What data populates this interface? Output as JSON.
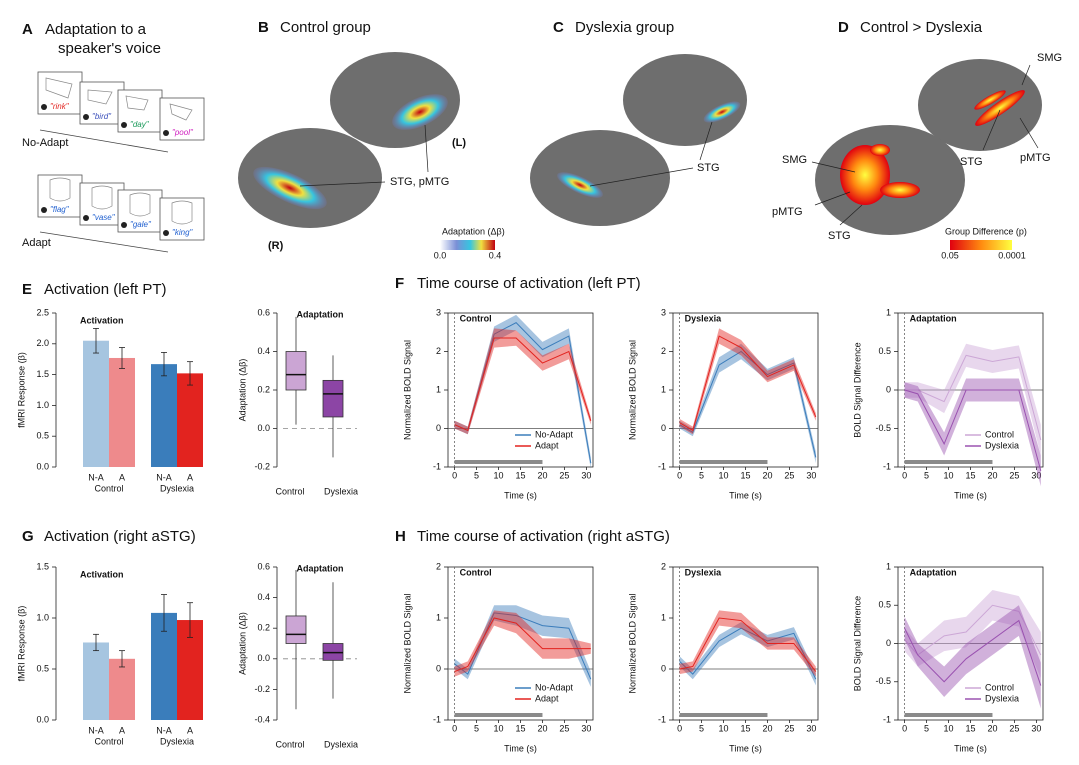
{
  "figure": {
    "panel_a": {
      "letter": "A",
      "title_lines": [
        "Adaptation to a",
        "speaker's voice"
      ],
      "conditions": [
        "No-Adapt",
        "Adapt"
      ],
      "words_no_adapt": [
        "\"rink\"",
        "\"bird\"",
        "\"day\"",
        "\"pool\""
      ],
      "words_adapt": [
        "\"flag\"",
        "\"vase\"",
        "\"gale\"",
        "\"king\""
      ]
    },
    "panel_b": {
      "letter": "B",
      "title": "Control group",
      "hemispheres": [
        "(R)",
        "(L)"
      ],
      "label": "STG, pMTG",
      "colorbar": {
        "title": "Adaptation (Δβ)",
        "min_label": "0.0",
        "max_label": "0.4"
      }
    },
    "panel_c": {
      "letter": "C",
      "title": "Dyslexia group",
      "label": "STG"
    },
    "panel_d": {
      "letter": "D",
      "title": "Control > Dyslexia",
      "labels": [
        "SMG",
        "SMG",
        "pMTG",
        "pMTG",
        "STG",
        "STG"
      ],
      "colorbar": {
        "title": "Group Difference (p)",
        "min_label": "0.05",
        "max_label": "0.0001"
      }
    },
    "panels": [
      {
        "letter": "E",
        "title": "Activation (left PT)"
      },
      {
        "letter": "F",
        "title": "Time course of activation (left PT)"
      },
      {
        "letter": "G",
        "title": "Activation (right aSTG)"
      },
      {
        "letter": "H",
        "title": "Time course of activation (right aSTG)"
      }
    ]
  },
  "chart_data": [
    {
      "type": "bar",
      "title": "Activation",
      "ylabel": "fMRI Response (β)",
      "categories": [
        "N-A",
        "A",
        "N-A",
        "A"
      ],
      "groups": [
        "Control",
        "Dyslexia"
      ],
      "values": [
        2.05,
        1.77,
        1.67,
        1.52
      ],
      "errors": [
        0.2,
        0.17,
        0.19,
        0.19
      ],
      "colors": [
        "#a6c5e0",
        "#ee8a8c",
        "#3a7dbb",
        "#e2231f"
      ],
      "ylim": [
        0,
        2.5
      ],
      "yticks": [
        {
          "value": 0,
          "label": "0.0"
        },
        0.5,
        {
          "value": 1,
          "label": "1.0"
        },
        1.5,
        {
          "value": 2,
          "label": "2.0"
        },
        2.5
      ]
    },
    {
      "type": "box",
      "title": "Adaptation",
      "ylabel": "Adaptation (Δβ)",
      "categories": [
        "Control",
        "Dyslexia"
      ],
      "boxes": [
        {
          "min": 0.02,
          "q1": 0.2,
          "median": 0.28,
          "q3": 0.4,
          "max": 0.58
        },
        {
          "min": -0.15,
          "q1": 0.06,
          "median": 0.18,
          "q3": 0.25,
          "max": 0.38
        }
      ],
      "colors": [
        "#cba5d4",
        "#8c45a5"
      ],
      "ylim": [
        -0.2,
        0.6
      ],
      "yticks": [
        -0.2,
        {
          "value": 0,
          "label": "0.0"
        },
        0.2,
        0.4,
        0.6
      ],
      "reference_line": 0
    },
    {
      "type": "line",
      "title": "Control",
      "xlabel": "Time (s)",
      "ylabel": "Normalized BOLD Signal",
      "x": [
        0,
        3,
        9,
        14,
        20,
        26,
        31
      ],
      "series": [
        {
          "name": "No-Adapt",
          "color": "#3b7dbb",
          "values": [
            0.1,
            -0.05,
            2.45,
            2.75,
            2.05,
            2.4,
            -0.9
          ],
          "errors": [
            0.1,
            0.1,
            0.2,
            0.2,
            0.2,
            0.2,
            0.15
          ]
        },
        {
          "name": "Adapt",
          "color": "#e2231f",
          "values": [
            0.1,
            -0.05,
            2.35,
            2.35,
            1.7,
            2.0,
            0.2
          ],
          "errors": [
            0.1,
            0.1,
            0.25,
            0.2,
            0.2,
            0.2,
            0.1
          ]
        }
      ],
      "xlim": [
        -1.5,
        31.5
      ],
      "xticks": [
        0,
        5,
        10,
        15,
        20,
        25,
        30
      ],
      "ylim": [
        -1,
        3
      ],
      "yticks": [
        -1,
        0,
        1,
        2,
        3
      ],
      "reference_line": 0,
      "onset": 0,
      "stimulus": [
        0,
        20
      ],
      "legend": "bottom-right"
    },
    {
      "type": "line",
      "title": "Dyslexia",
      "xlabel": "Time (s)",
      "ylabel": "Normalized BOLD Signal",
      "x": [
        0,
        3,
        9,
        14,
        20,
        26,
        31
      ],
      "series": [
        {
          "color": "#3b7dbb",
          "values": [
            0.1,
            -0.1,
            1.65,
            2.0,
            1.4,
            1.7,
            -0.75
          ],
          "errors": [
            0.1,
            0.1,
            0.2,
            0.2,
            0.15,
            0.15,
            0.15
          ]
        },
        {
          "color": "#e2231f",
          "values": [
            0.15,
            -0.05,
            2.4,
            2.1,
            1.35,
            1.65,
            0.3
          ],
          "errors": [
            0.1,
            0.1,
            0.2,
            0.2,
            0.15,
            0.15,
            0.1
          ]
        }
      ],
      "xlim": [
        -1.5,
        31.5
      ],
      "xticks": [
        0,
        5,
        10,
        15,
        20,
        25,
        30
      ],
      "ylim": [
        -1,
        3
      ],
      "yticks": [
        -1,
        0,
        1,
        2,
        3
      ],
      "reference_line": 0,
      "onset": 0,
      "stimulus": [
        0,
        20
      ]
    },
    {
      "type": "line",
      "title": "Adaptation",
      "xlabel": "Time (s)",
      "ylabel": "BOLD Signal Difference",
      "x": [
        0,
        3,
        9,
        14,
        20,
        26,
        31
      ],
      "series": [
        {
          "name": "Control",
          "color": "#cca7d6",
          "values": [
            0,
            0,
            -0.15,
            0.45,
            0.37,
            0.43,
            -0.65
          ],
          "errors": [
            0.1,
            0.1,
            0.15,
            0.15,
            0.15,
            0.15,
            0.2
          ]
        },
        {
          "name": "Dyslexia",
          "color": "#9a52b0",
          "values": [
            0,
            -0.05,
            -0.7,
            0,
            0,
            0,
            -1.05
          ],
          "errors": [
            0.1,
            0.1,
            0.15,
            0.15,
            0.15,
            0.15,
            0.2
          ]
        }
      ],
      "xlim": [
        -1.5,
        31.5
      ],
      "xticks": [
        0,
        5,
        10,
        15,
        20,
        25,
        30
      ],
      "ylim": [
        -1,
        1
      ],
      "yticks": [
        -1,
        -0.5,
        0,
        0.5,
        1
      ],
      "reference_line": 0,
      "onset": 0,
      "stimulus": [
        0,
        20
      ],
      "legend": "bottom-right"
    },
    {
      "type": "bar",
      "title": "Activation",
      "ylabel": "fMRI Response (β)",
      "categories": [
        "N-A",
        "A",
        "N-A",
        "A"
      ],
      "groups": [
        "Control",
        "Dyslexia"
      ],
      "values": [
        0.76,
        0.6,
        1.05,
        0.98
      ],
      "errors": [
        0.08,
        0.08,
        0.18,
        0.17
      ],
      "colors": [
        "#a6c5e0",
        "#ee8a8c",
        "#3a7dbb",
        "#e2231f"
      ],
      "ylim": [
        0,
        1.5
      ],
      "yticks": [
        {
          "value": 0,
          "label": "0.0"
        },
        0.5,
        {
          "value": 1,
          "label": "1.0"
        },
        1.5
      ]
    },
    {
      "type": "box",
      "title": "Adaptation",
      "ylabel": "Adaptation (Δβ)",
      "categories": [
        "Control",
        "Dyslexia"
      ],
      "boxes": [
        {
          "min": -0.33,
          "q1": 0.1,
          "median": 0.16,
          "q3": 0.28,
          "max": 0.58
        },
        {
          "min": -0.26,
          "q1": -0.01,
          "median": 0.04,
          "q3": 0.1,
          "max": 0.5
        }
      ],
      "colors": [
        "#cba5d4",
        "#8c45a5"
      ],
      "ylim": [
        -0.4,
        0.6
      ],
      "yticks": [
        -0.4,
        -0.2,
        {
          "value": 0,
          "label": "0.0"
        },
        0.2,
        0.4,
        0.6
      ],
      "reference_line": 0
    },
    {
      "type": "line",
      "title": "Control",
      "xlabel": "Time (s)",
      "ylabel": "Normalized BOLD Signal",
      "x": [
        0,
        3,
        9,
        14,
        20,
        26,
        31
      ],
      "series": [
        {
          "name": "No-Adapt",
          "color": "#3b7dbb",
          "values": [
            0.1,
            -0.1,
            1.1,
            1.05,
            0.85,
            0.8,
            -0.2
          ],
          "errors": [
            0.1,
            0.1,
            0.15,
            0.2,
            0.2,
            0.2,
            0.15
          ]
        },
        {
          "name": "Adapt",
          "color": "#e2231f",
          "values": [
            -0.05,
            0.05,
            1.0,
            0.9,
            0.4,
            0.4,
            0.4
          ],
          "errors": [
            0.1,
            0.1,
            0.15,
            0.2,
            0.2,
            0.2,
            0.1
          ]
        }
      ],
      "xlim": [
        -1.5,
        31.5
      ],
      "xticks": [
        0,
        5,
        10,
        15,
        20,
        25,
        30
      ],
      "ylim": [
        -1,
        2
      ],
      "yticks": [
        -1,
        0,
        1,
        2
      ],
      "reference_line": 0,
      "onset": 0,
      "stimulus": [
        0,
        20
      ],
      "legend": "bottom-right"
    },
    {
      "type": "line",
      "title": "Dyslexia",
      "xlabel": "Time (s)",
      "ylabel": "Normalized BOLD Signal",
      "x": [
        0,
        3,
        9,
        14,
        20,
        26,
        31
      ],
      "series": [
        {
          "color": "#3b7dbb",
          "values": [
            0.15,
            -0.1,
            0.55,
            0.8,
            0.55,
            0.7,
            -0.2
          ],
          "errors": [
            0.1,
            0.1,
            0.12,
            0.12,
            0.12,
            0.12,
            0.12
          ]
        },
        {
          "color": "#e2231f",
          "values": [
            0,
            0.05,
            1.0,
            0.95,
            0.5,
            0.5,
            -0.05
          ],
          "errors": [
            0.1,
            0.1,
            0.15,
            0.15,
            0.12,
            0.12,
            0.1
          ]
        }
      ],
      "xlim": [
        -1.5,
        31.5
      ],
      "xticks": [
        0,
        5,
        10,
        15,
        20,
        25,
        30
      ],
      "ylim": [
        -1,
        2
      ],
      "yticks": [
        -1,
        0,
        1,
        2
      ],
      "reference_line": 0,
      "onset": 0,
      "stimulus": [
        0,
        20
      ]
    },
    {
      "type": "line",
      "title": "Adaptation",
      "xlabel": "Time (s)",
      "ylabel": "BOLD Signal Difference",
      "x": [
        0,
        3,
        9,
        14,
        20,
        26,
        31
      ],
      "series": [
        {
          "name": "Control",
          "color": "#cca7d6",
          "values": [
            0.05,
            -0.15,
            0.1,
            0.15,
            0.5,
            0.42,
            -0.15
          ],
          "errors": [
            0.15,
            0.15,
            0.2,
            0.2,
            0.2,
            0.2,
            0.3
          ]
        },
        {
          "name": "Dyslexia",
          "color": "#9a52b0",
          "values": [
            0.2,
            -0.15,
            -0.5,
            -0.2,
            0.05,
            0.3,
            -0.55
          ],
          "errors": [
            0.15,
            0.15,
            0.2,
            0.2,
            0.2,
            0.2,
            0.3
          ]
        }
      ],
      "xlim": [
        -1.5,
        31.5
      ],
      "xticks": [
        0,
        5,
        10,
        15,
        20,
        25,
        30
      ],
      "ylim": [
        -1,
        1
      ],
      "yticks": [
        -1,
        -0.5,
        0,
        0.5,
        1
      ],
      "reference_line": 0,
      "onset": 0,
      "stimulus": [
        0,
        20
      ],
      "legend": "bottom-right"
    }
  ]
}
